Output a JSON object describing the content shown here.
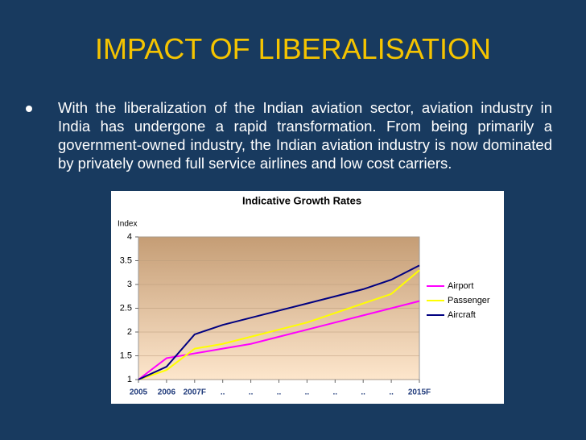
{
  "slide": {
    "title": "IMPACT OF LIBERALISATION",
    "bullet": "With the liberalization of the Indian aviation sector, aviation industry in India has undergone a rapid transformation. From being primarily a government-owned industry, the Indian aviation industry is now dominated by privately owned full service airlines and low cost carriers."
  },
  "chart_data": {
    "type": "line",
    "title": "Indicative Growth Rates",
    "y_label": "Index",
    "categories": [
      "2005",
      "2006",
      "2007F",
      "..",
      "..",
      "..",
      "..",
      "..",
      "..",
      "..",
      "2015F"
    ],
    "series": [
      {
        "name": "Airport",
        "color": "#ff00ff",
        "values": [
          1,
          1.45,
          1.55,
          1.65,
          1.75,
          1.9,
          2.05,
          2.2,
          2.35,
          2.5,
          2.65
        ]
      },
      {
        "name": "Passenger",
        "color": "#ffff00",
        "values": [
          1,
          1.2,
          1.65,
          1.75,
          1.9,
          2.05,
          2.2,
          2.4,
          2.6,
          2.8,
          3.3
        ]
      },
      {
        "name": "Aircraft",
        "color": "#000080",
        "values": [
          1,
          1.27,
          1.95,
          2.15,
          2.3,
          2.45,
          2.6,
          2.75,
          2.9,
          3.1,
          3.4
        ]
      }
    ],
    "ylim": [
      1,
      4
    ],
    "yticks": [
      1,
      1.5,
      2,
      2.5,
      3,
      3.5,
      4
    ],
    "grid": true,
    "legend": "right"
  }
}
